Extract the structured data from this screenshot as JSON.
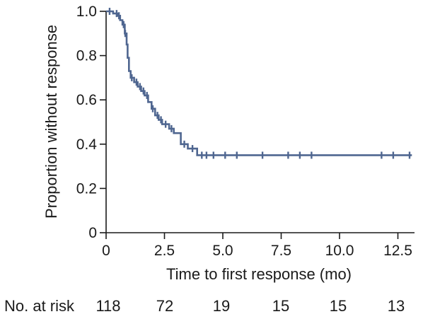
{
  "chart_data": {
    "type": "line",
    "title": "",
    "xlabel": "Time to first response (mo)",
    "ylabel": "Proportion without response",
    "xlim": [
      0,
      13
    ],
    "ylim": [
      0,
      1.0
    ],
    "x_ticks": [
      0,
      2.5,
      5.0,
      7.5,
      10.0,
      12.5
    ],
    "x_tick_labels": [
      "0",
      "2.5",
      "5.0",
      "7.5",
      "10.0",
      "12.5"
    ],
    "y_ticks": [
      0,
      0.2,
      0.4,
      0.6,
      0.8,
      1.0
    ],
    "y_tick_labels": [
      "0",
      "0.2",
      "0.4",
      "0.6",
      "0.8",
      "1.0"
    ],
    "grid": false,
    "legend": "none",
    "series_color": "#4f6690",
    "series": [
      {
        "step_points": [
          [
            0,
            1.0
          ],
          [
            0.3,
            1.0
          ],
          [
            0.3,
            0.99
          ],
          [
            0.5,
            0.99
          ],
          [
            0.5,
            0.98
          ],
          [
            0.6,
            0.98
          ],
          [
            0.6,
            0.96
          ],
          [
            0.7,
            0.96
          ],
          [
            0.7,
            0.94
          ],
          [
            0.8,
            0.94
          ],
          [
            0.8,
            0.9
          ],
          [
            0.88,
            0.9
          ],
          [
            0.88,
            0.85
          ],
          [
            0.92,
            0.85
          ],
          [
            0.92,
            0.79
          ],
          [
            0.98,
            0.79
          ],
          [
            0.98,
            0.73
          ],
          [
            1.05,
            0.73
          ],
          [
            1.05,
            0.7
          ],
          [
            1.2,
            0.7
          ],
          [
            1.2,
            0.68
          ],
          [
            1.35,
            0.68
          ],
          [
            1.35,
            0.66
          ],
          [
            1.5,
            0.66
          ],
          [
            1.5,
            0.64
          ],
          [
            1.65,
            0.64
          ],
          [
            1.65,
            0.62
          ],
          [
            1.8,
            0.62
          ],
          [
            1.8,
            0.59
          ],
          [
            1.95,
            0.59
          ],
          [
            1.95,
            0.56
          ],
          [
            2.1,
            0.56
          ],
          [
            2.1,
            0.53
          ],
          [
            2.25,
            0.53
          ],
          [
            2.25,
            0.51
          ],
          [
            2.4,
            0.51
          ],
          [
            2.4,
            0.49
          ],
          [
            2.7,
            0.49
          ],
          [
            2.7,
            0.47
          ],
          [
            2.9,
            0.47
          ],
          [
            2.9,
            0.45
          ],
          [
            3.2,
            0.45
          ],
          [
            3.2,
            0.4
          ],
          [
            3.5,
            0.4
          ],
          [
            3.5,
            0.38
          ],
          [
            3.9,
            0.38
          ],
          [
            3.9,
            0.35
          ],
          [
            13.1,
            0.35
          ]
        ],
        "censor_marks": [
          [
            0.15,
            1.0
          ],
          [
            0.45,
            0.99
          ],
          [
            0.55,
            0.98
          ],
          [
            0.75,
            0.94
          ],
          [
            0.82,
            0.9
          ],
          [
            1.1,
            0.7
          ],
          [
            1.3,
            0.68
          ],
          [
            1.45,
            0.66
          ],
          [
            1.6,
            0.64
          ],
          [
            1.75,
            0.62
          ],
          [
            2.0,
            0.56
          ],
          [
            2.2,
            0.53
          ],
          [
            2.35,
            0.51
          ],
          [
            2.55,
            0.49
          ],
          [
            2.8,
            0.47
          ],
          [
            3.35,
            0.4
          ],
          [
            3.7,
            0.38
          ],
          [
            4.1,
            0.35
          ],
          [
            4.3,
            0.35
          ],
          [
            4.6,
            0.35
          ],
          [
            5.1,
            0.35
          ],
          [
            5.6,
            0.35
          ],
          [
            6.7,
            0.35
          ],
          [
            7.8,
            0.35
          ],
          [
            8.3,
            0.35
          ],
          [
            8.8,
            0.35
          ],
          [
            11.8,
            0.35
          ],
          [
            12.3,
            0.35
          ],
          [
            13.0,
            0.35
          ]
        ]
      }
    ],
    "at_risk": {
      "label": "No. at risk",
      "values": [
        "118",
        "72",
        "19",
        "15",
        "15",
        "13"
      ]
    }
  }
}
